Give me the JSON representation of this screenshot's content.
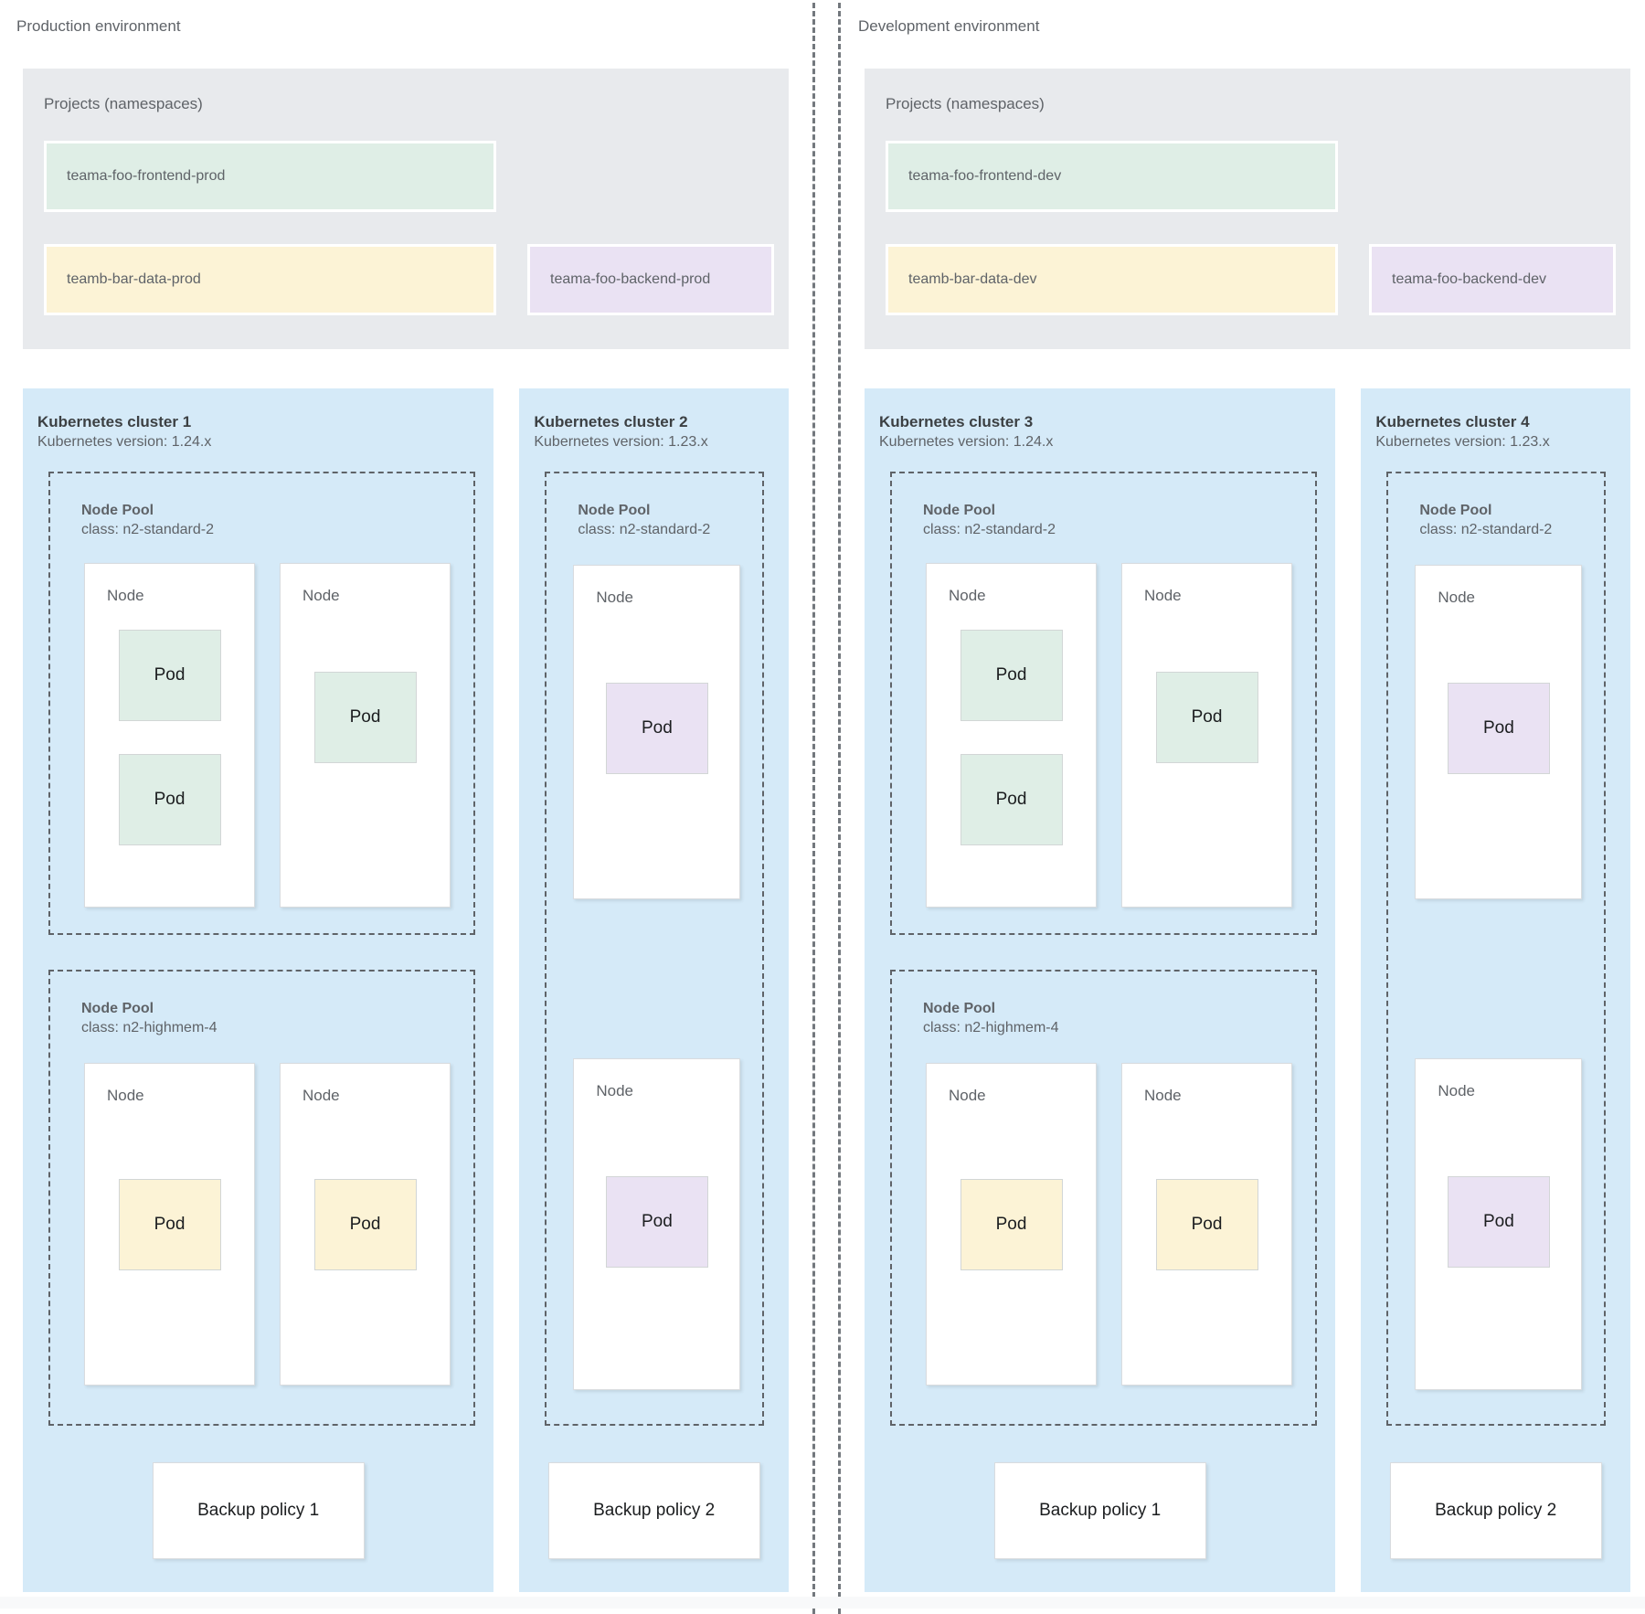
{
  "palette": {
    "cluster_bg": "#d5eaf8",
    "projects_bg": "#e8eaed",
    "namespace_green": "#dfeee6",
    "namespace_yellow": "#fcf3d6",
    "namespace_purple": "#eae2f3",
    "dashed_border": "#5f6368",
    "divider": "#73787d",
    "title_text": "#3c4043",
    "muted_text": "#5f6368"
  },
  "environments": [
    {
      "title": "Production environment",
      "projects": {
        "title": "Projects (namespaces)",
        "namespaces": [
          {
            "label": "teama-foo-frontend-prod",
            "color": "green"
          },
          {
            "label": "teamb-bar-data-prod",
            "color": "yellow"
          },
          {
            "label": "teama-foo-backend-prod",
            "color": "purple"
          }
        ]
      },
      "clusters": [
        {
          "name": "Kubernetes cluster 1",
          "version": "Kubernetes version: 1.24.x",
          "backup_policy": "Backup policy 1",
          "node_pools": [
            {
              "title": "Node Pool",
              "machine_class": "class: n2-standard-2",
              "nodes": [
                {
                  "label": "Node",
                  "pods": [
                    {
                      "label": "Pod",
                      "color": "green"
                    },
                    {
                      "label": "Pod",
                      "color": "green"
                    }
                  ]
                },
                {
                  "label": "Node",
                  "pods": [
                    {
                      "label": "Pod",
                      "color": "green"
                    }
                  ]
                }
              ]
            },
            {
              "title": "Node Pool",
              "machine_class": "class: n2-highmem-4",
              "nodes": [
                {
                  "label": "Node",
                  "pods": [
                    {
                      "label": "Pod",
                      "color": "yellow"
                    }
                  ]
                },
                {
                  "label": "Node",
                  "pods": [
                    {
                      "label": "Pod",
                      "color": "yellow"
                    }
                  ]
                }
              ]
            }
          ]
        },
        {
          "name": "Kubernetes cluster 2",
          "version": "Kubernetes version: 1.23.x",
          "backup_policy": "Backup policy 2",
          "node_pools": [
            {
              "title": "Node Pool",
              "machine_class": "class: n2-standard-2",
              "nodes": [
                {
                  "label": "Node",
                  "pods": [
                    {
                      "label": "Pod",
                      "color": "purple"
                    }
                  ]
                },
                {
                  "label": "Node",
                  "pods": [
                    {
                      "label": "Pod",
                      "color": "purple"
                    }
                  ]
                }
              ]
            }
          ]
        }
      ]
    },
    {
      "title": "Development environment",
      "projects": {
        "title": "Projects (namespaces)",
        "namespaces": [
          {
            "label": "teama-foo-frontend-dev",
            "color": "green"
          },
          {
            "label": "teamb-bar-data-dev",
            "color": "yellow"
          },
          {
            "label": "teama-foo-backend-dev",
            "color": "purple"
          }
        ]
      },
      "clusters": [
        {
          "name": "Kubernetes cluster 3",
          "version": "Kubernetes version: 1.24.x",
          "backup_policy": "Backup policy 1",
          "node_pools": [
            {
              "title": "Node Pool",
              "machine_class": "class: n2-standard-2",
              "nodes": [
                {
                  "label": "Node",
                  "pods": [
                    {
                      "label": "Pod",
                      "color": "green"
                    },
                    {
                      "label": "Pod",
                      "color": "green"
                    }
                  ]
                },
                {
                  "label": "Node",
                  "pods": [
                    {
                      "label": "Pod",
                      "color": "green"
                    }
                  ]
                }
              ]
            },
            {
              "title": "Node Pool",
              "machine_class": "class: n2-highmem-4",
              "nodes": [
                {
                  "label": "Node",
                  "pods": [
                    {
                      "label": "Pod",
                      "color": "yellow"
                    }
                  ]
                },
                {
                  "label": "Node",
                  "pods": [
                    {
                      "label": "Pod",
                      "color": "yellow"
                    }
                  ]
                }
              ]
            }
          ]
        },
        {
          "name": "Kubernetes cluster 4",
          "version": "Kubernetes version: 1.23.x",
          "backup_policy": "Backup policy 2",
          "node_pools": [
            {
              "title": "Node Pool",
              "machine_class": "class: n2-standard-2",
              "nodes": [
                {
                  "label": "Node",
                  "pods": [
                    {
                      "label": "Pod",
                      "color": "purple"
                    }
                  ]
                },
                {
                  "label": "Node",
                  "pods": [
                    {
                      "label": "Pod",
                      "color": "purple"
                    }
                  ]
                }
              ]
            }
          ]
        }
      ]
    }
  ]
}
